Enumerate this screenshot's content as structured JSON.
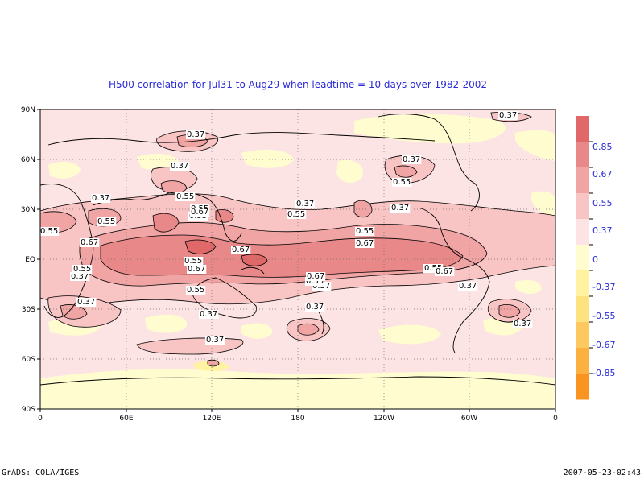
{
  "title": "H500 correlation for  Jul31 to Aug29  when leadtime =  10 days over 1982-2002",
  "footer": {
    "left": "GrADS: COLA/IGES",
    "right": "2007-05-23-02:43"
  },
  "axes": {
    "lat_ticks": [
      "90N",
      "60N",
      "30N",
      "EQ",
      "30S",
      "60S",
      "90S"
    ],
    "lon_ticks": [
      "0",
      "60E",
      "120E",
      "180",
      "120W",
      "60W",
      "0"
    ]
  },
  "colorbar": {
    "labels": [
      "0.85",
      "0.67",
      "0.55",
      "0.37",
      "0",
      "-0.37",
      "-0.55",
      "-0.67",
      "-0.85"
    ],
    "colors": [
      "#e06868",
      "#e88888",
      "#f0a4a4",
      "#f8c4c4",
      "#fde4e4",
      "#fffcd0",
      "#fff2a0",
      "#fde280",
      "#fdc860",
      "#fcb040",
      "#fa9420"
    ]
  },
  "contour_labels": [
    {
      "text": "0.37"
    },
    {
      "text": "0.37"
    },
    {
      "text": "0.37"
    },
    {
      "text": "0.37"
    },
    {
      "text": "0.37"
    },
    {
      "text": "0.37"
    },
    {
      "text": "0.37"
    },
    {
      "text": "0.37"
    },
    {
      "text": "0.37"
    },
    {
      "text": "0.37"
    },
    {
      "text": "0.37"
    },
    {
      "text": "0.37"
    },
    {
      "text": "0.37"
    },
    {
      "text": "0.37"
    },
    {
      "text": "0.37"
    },
    {
      "text": "0.55"
    },
    {
      "text": "0.55"
    },
    {
      "text": "0.55"
    },
    {
      "text": "0.55"
    },
    {
      "text": "0.55"
    },
    {
      "text": "0.55"
    },
    {
      "text": "0.55"
    },
    {
      "text": "0.55"
    },
    {
      "text": "0.55"
    },
    {
      "text": "0.55"
    },
    {
      "text": "0.55"
    },
    {
      "text": "0.55"
    },
    {
      "text": "0.55"
    },
    {
      "text": "0.67"
    },
    {
      "text": "0.67"
    },
    {
      "text": "0.67"
    },
    {
      "text": "0.67"
    },
    {
      "text": "0.67"
    },
    {
      "text": "0.67"
    },
    {
      "text": "0.67"
    }
  ]
}
